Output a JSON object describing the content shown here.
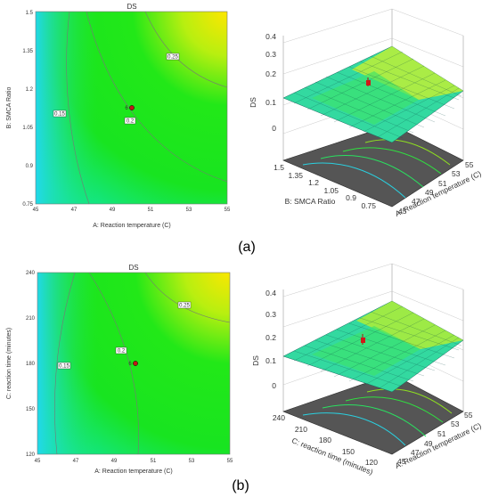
{
  "chart_data": [
    {
      "type": "contour",
      "title": "DS",
      "xlabel": "A: Reaction temperature (C)",
      "ylabel": "B: SMCA Ratio",
      "xlim": [
        45,
        55
      ],
      "ylim": [
        0.75,
        1.5
      ],
      "x_ticks": [
        "45",
        "47",
        "49",
        "51",
        "53",
        "55"
      ],
      "y_ticks": [
        "0.75",
        "0.9",
        "1.05",
        "1.2",
        "1.35",
        "1.5"
      ],
      "contour_levels": [
        "0.15",
        "0.2",
        "0.25"
      ],
      "design_point": {
        "label": "6",
        "x": 50,
        "y": 1.125
      },
      "colors": {
        "low": "#1fd4f0",
        "mid": "#18e61a",
        "high": "#ffe600"
      }
    },
    {
      "type": "surface3d",
      "zlabel": "DS",
      "xlabel": "A: Reaction temperature (C)",
      "ylabel": "B: SMCA Ratio",
      "z_ticks": [
        "0",
        "0.1",
        "0.2",
        "0.3",
        "0.4"
      ],
      "x_ticks": [
        "45",
        "47",
        "49",
        "51",
        "53",
        "55"
      ],
      "y_ticks": [
        "0.75",
        "0.9",
        "1.05",
        "1.2",
        "1.35",
        "1.5"
      ],
      "zlim": [
        0,
        0.4
      ]
    },
    {
      "type": "contour",
      "title": "DS",
      "xlabel": "A: Reaction temperature (C)",
      "ylabel": "C: reaction time (minutes)",
      "xlim": [
        45,
        55
      ],
      "ylim": [
        120,
        240
      ],
      "x_ticks": [
        "45",
        "47",
        "49",
        "51",
        "53",
        "55"
      ],
      "y_ticks": [
        "120",
        "150",
        "180",
        "210",
        "240"
      ],
      "contour_levels": [
        "0.15",
        "0.2",
        "0.25"
      ],
      "design_point": {
        "label": "6",
        "x": 50,
        "y": 180
      },
      "colors": {
        "low": "#1fd4f0",
        "mid": "#18e61a",
        "high": "#ffe600"
      }
    },
    {
      "type": "surface3d",
      "zlabel": "DS",
      "xlabel": "A: Reaction temperature (C)",
      "ylabel": "C: reaction time (minutes)",
      "z_ticks": [
        "0",
        "0.1",
        "0.2",
        "0.3",
        "0.4"
      ],
      "x_ticks": [
        "45",
        "47",
        "49",
        "51",
        "53",
        "55"
      ],
      "y_ticks": [
        "120",
        "150",
        "180",
        "210",
        "240"
      ],
      "zlim": [
        0,
        0.4
      ]
    }
  ],
  "captions": {
    "a": "(a)",
    "b": "(b)"
  }
}
